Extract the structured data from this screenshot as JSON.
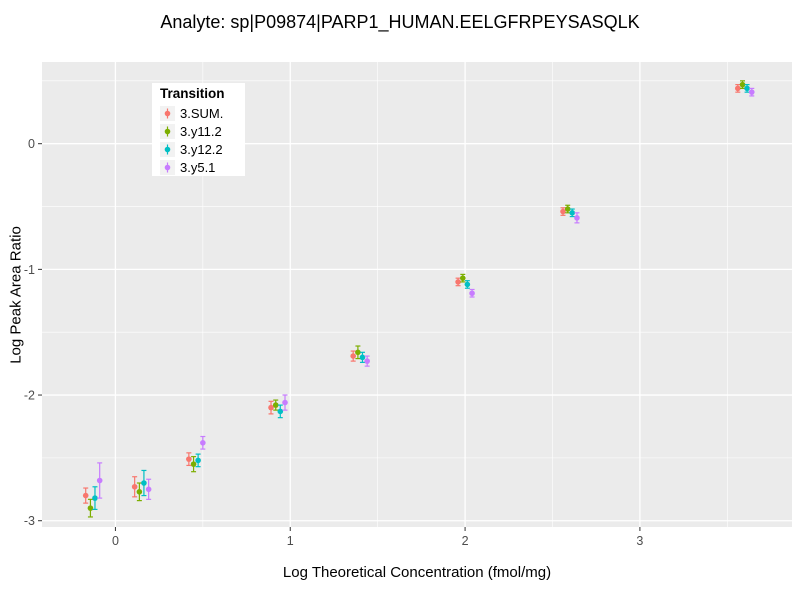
{
  "chart_data": {
    "type": "scatter",
    "title": "Analyte: sp|P09874|PARP1_HUMAN.EELGFRPEYSASQLK",
    "xlabel": "Log Theoretical Concentration (fmol/mg)",
    "ylabel": "Log Peak Area Ratio",
    "xlim": [
      -0.42,
      3.87
    ],
    "ylim": [
      -3.05,
      0.65
    ],
    "x_ticks": [
      0,
      1,
      2,
      3
    ],
    "y_ticks": [
      0,
      -1,
      -2,
      -3
    ],
    "x_minor": [
      0.5,
      1.5,
      2.5,
      3.5
    ],
    "y_minor": [
      0.5,
      -0.5,
      -1.5,
      -2.5
    ],
    "grid": true,
    "panel_bg": "#EBEBEB",
    "grid_color": "#FFFFFF",
    "tick_label_color": "#4D4D4D",
    "legend_title": "Transition",
    "legend_position": "inside-top-left",
    "x": [
      -0.13,
      0.15,
      0.46,
      0.93,
      1.4,
      2.0,
      2.6,
      3.6
    ],
    "series": [
      {
        "name": "3.SUM.",
        "color": "#F8766D",
        "x_offset": -0.04,
        "y": [
          -2.8,
          -2.73,
          -2.51,
          -2.1,
          -1.69,
          -1.1,
          -0.54,
          0.44
        ],
        "err": [
          0.06,
          0.08,
          0.05,
          0.05,
          0.04,
          0.03,
          0.03,
          0.03
        ]
      },
      {
        "name": "3.y11.2",
        "color": "#7CAE00",
        "x_offset": -0.013,
        "y": [
          -2.9,
          -2.77,
          -2.55,
          -2.08,
          -1.66,
          -1.07,
          -0.52,
          0.47
        ],
        "err": [
          0.07,
          0.07,
          0.06,
          0.04,
          0.05,
          0.03,
          0.03,
          0.03
        ]
      },
      {
        "name": "3.y12.2",
        "color": "#00BFC4",
        "x_offset": 0.013,
        "y": [
          -2.82,
          -2.7,
          -2.52,
          -2.13,
          -1.7,
          -1.12,
          -0.55,
          0.44
        ],
        "err": [
          0.09,
          0.1,
          0.05,
          0.05,
          0.04,
          0.03,
          0.03,
          0.03
        ]
      },
      {
        "name": "3.y5.1",
        "color": "#C77CFF",
        "x_offset": 0.04,
        "y": [
          -2.68,
          -2.75,
          -2.38,
          -2.06,
          -1.73,
          -1.19,
          -0.59,
          0.41
        ],
        "err": [
          0.14,
          0.08,
          0.05,
          0.06,
          0.04,
          0.03,
          0.04,
          0.03
        ]
      }
    ]
  }
}
